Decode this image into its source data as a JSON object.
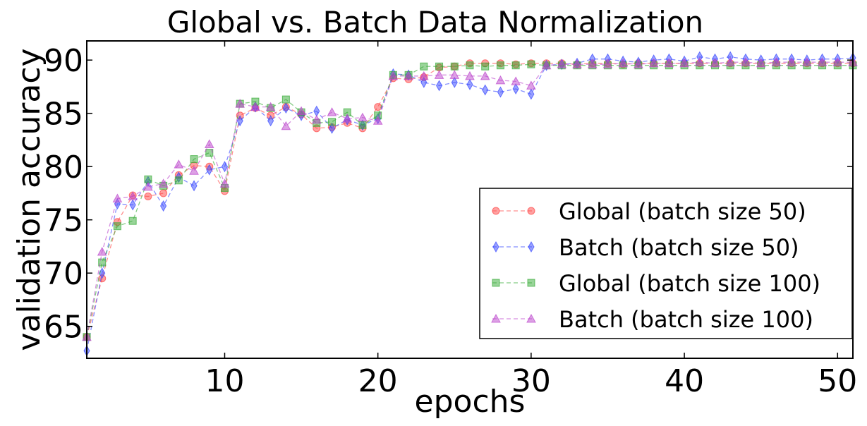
{
  "chart_data": {
    "type": "line",
    "title": "Global vs. Batch Data Normalization",
    "xlabel": "epochs",
    "ylabel": "validation accuracy",
    "xlim": [
      1,
      51
    ],
    "ylim": [
      62,
      91.8
    ],
    "xticks": [
      10,
      20,
      30,
      40,
      50
    ],
    "xtick_labels": [
      "10",
      "20",
      "30",
      "40",
      "50"
    ],
    "yticks": [
      65,
      70,
      75,
      80,
      85,
      90
    ],
    "ytick_labels": [
      "65",
      "70",
      "75",
      "80",
      "85",
      "90"
    ],
    "grid": false,
    "legend_position": "lower-right",
    "x": [
      1,
      2,
      3,
      4,
      5,
      6,
      7,
      8,
      9,
      10,
      11,
      12,
      13,
      14,
      15,
      16,
      17,
      18,
      19,
      20,
      21,
      22,
      23,
      24,
      25,
      26,
      27,
      28,
      29,
      30,
      31,
      32,
      33,
      34,
      35,
      36,
      37,
      38,
      39,
      40,
      41,
      42,
      43,
      44,
      45,
      46,
      47,
      48,
      49,
      50,
      51
    ],
    "series": [
      {
        "name": "Global (batch size 50)",
        "color": "#ff4444",
        "marker": "circle",
        "values": [
          64.0,
          69.5,
          74.8,
          77.3,
          77.2,
          77.5,
          79.2,
          80.1,
          80.0,
          77.7,
          84.8,
          85.5,
          84.8,
          85.6,
          84.9,
          83.6,
          83.7,
          84.1,
          83.6,
          85.6,
          88.3,
          88.2,
          88.4,
          89.3,
          89.4,
          89.7,
          89.7,
          89.7,
          89.6,
          89.7,
          89.7,
          89.7,
          89.6,
          89.7,
          89.7,
          89.6,
          89.7,
          89.7,
          89.7,
          89.7,
          89.7,
          89.7,
          89.7,
          89.7,
          89.7,
          89.7,
          89.7,
          89.7,
          89.7,
          89.7,
          89.7
        ]
      },
      {
        "name": "Batch (batch size 50)",
        "color": "#3344ff",
        "marker": "diamond",
        "values": [
          62.7,
          70.0,
          76.5,
          76.4,
          78.6,
          76.3,
          79.0,
          78.2,
          79.7,
          80.0,
          84.3,
          85.6,
          84.3,
          85.5,
          84.8,
          85.2,
          83.6,
          84.4,
          83.9,
          84.5,
          88.7,
          88.6,
          87.9,
          87.6,
          87.9,
          87.7,
          87.2,
          87.0,
          87.3,
          86.8,
          89.5,
          89.6,
          89.7,
          90.1,
          90.1,
          89.9,
          89.8,
          90.0,
          90.1,
          89.9,
          90.3,
          90.1,
          90.3,
          90.1,
          90.0,
          90.1,
          90.1,
          90.0,
          90.1,
          90.1,
          90.2
        ]
      },
      {
        "name": "Global (batch size 100)",
        "color": "#33aa33",
        "marker": "square",
        "values": [
          64.0,
          71.0,
          74.4,
          74.9,
          78.8,
          78.2,
          78.7,
          80.7,
          81.3,
          78.0,
          85.9,
          86.1,
          85.5,
          86.3,
          85.1,
          84.1,
          84.2,
          85.1,
          83.9,
          84.8,
          88.6,
          88.6,
          89.4,
          89.4,
          89.4,
          89.5,
          89.4,
          89.5,
          89.5,
          89.6,
          89.5,
          89.5,
          89.5,
          89.5,
          89.5,
          89.5,
          89.5,
          89.5,
          89.5,
          89.5,
          89.5,
          89.5,
          89.5,
          89.5,
          89.5,
          89.5,
          89.5,
          89.5,
          89.5,
          89.5,
          89.5
        ]
      },
      {
        "name": "Batch (batch size 100)",
        "color": "#bb44cc",
        "marker": "triangle",
        "values": [
          64.0,
          72.0,
          77.0,
          77.2,
          78.1,
          78.4,
          80.2,
          79.6,
          82.1,
          78.4,
          85.9,
          85.6,
          85.6,
          83.8,
          85.2,
          84.4,
          85.1,
          84.5,
          84.6,
          84.3,
          88.5,
          88.5,
          88.5,
          88.6,
          88.6,
          88.5,
          88.5,
          88.1,
          88.0,
          87.6,
          89.5,
          89.6,
          89.6,
          89.6,
          89.6,
          89.7,
          89.6,
          89.7,
          89.7,
          89.7,
          89.8,
          89.7,
          89.8,
          89.8,
          89.7,
          89.8,
          89.8,
          89.8,
          89.8,
          89.8,
          89.8
        ]
      }
    ]
  }
}
